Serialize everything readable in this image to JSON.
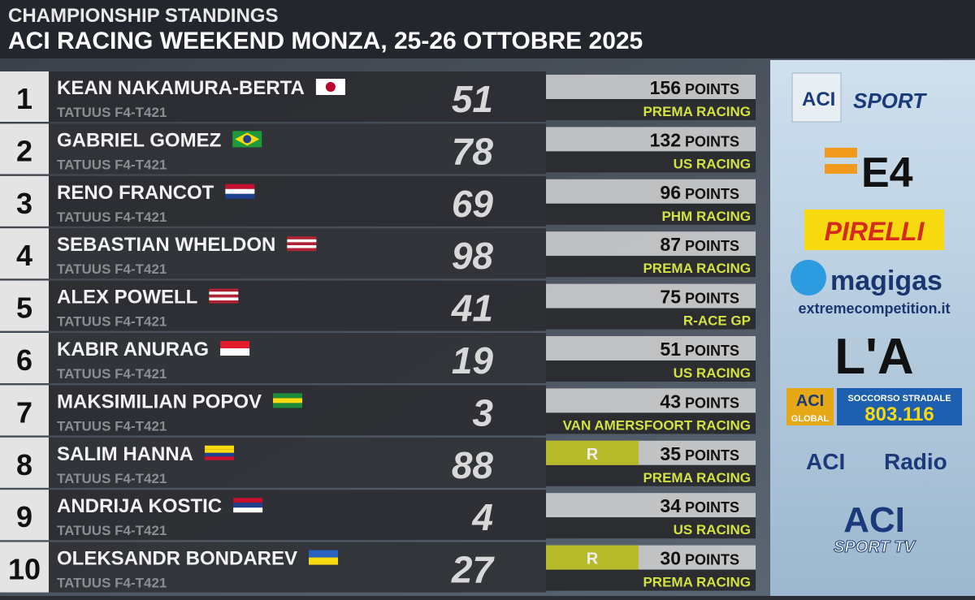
{
  "header": {
    "title": "CHAMPIONSHIP STANDINGS",
    "subtitle": "ACI RACING WEEKEND MONZA, 25-26 OTTOBRE 2025"
  },
  "standings": {
    "rows": [
      {
        "position": "1",
        "driver": "KEAN NAKAMURA-BERTA",
        "car": "TATUUS F4-T421",
        "number": "51",
        "points": "156",
        "points_unit": "POINTS",
        "team": "PREMA RACING"
      },
      {
        "position": "2",
        "driver": "GABRIEL GOMEZ",
        "car": "TATUUS F4-T421",
        "number": "78",
        "points": "132",
        "points_unit": "POINTS",
        "team": "US RACING"
      },
      {
        "position": "3",
        "driver": "RENO FRANCOT",
        "car": "TATUUS F4-T421",
        "number": "69",
        "points": "96",
        "points_unit": "POINTS",
        "team": "PHM RACING"
      },
      {
        "position": "4",
        "driver": "SEBASTIAN WHELDON",
        "car": "TATUUS F4-T421",
        "number": "98",
        "points": "87",
        "points_unit": "POINTS",
        "team": "PREMA RACING"
      },
      {
        "position": "5",
        "driver": "ALEX POWELL",
        "car": "TATUUS F4-T421",
        "number": "41",
        "points": "75",
        "points_unit": "POINTS",
        "team": "R-ACE GP"
      },
      {
        "position": "6",
        "driver": "KABIR ANURAG",
        "car": "TATUUS F4-T421",
        "number": "19",
        "points": "51",
        "points_unit": "POINTS",
        "team": "US RACING"
      },
      {
        "position": "7",
        "driver": "MAKSIMILIAN POPOV",
        "car": "TATUUS F4-T421",
        "number": "3",
        "points": "43",
        "points_unit": "POINTS",
        "team": "VAN AMERSFOORT RACING"
      },
      {
        "position": "8",
        "driver": "SALIM HANNA",
        "car": "TATUUS F4-T421",
        "number": "88",
        "points": "35",
        "points_unit": "POINTS",
        "team": "PREMA RACING",
        "badge": "R"
      },
      {
        "position": "9",
        "driver": "ANDRIJA KOSTIC",
        "car": "TATUUS F4-T421",
        "number": "4",
        "points": "34",
        "points_unit": "POINTS",
        "team": "US RACING"
      },
      {
        "position": "10",
        "driver": "OLEKSANDR BONDAREV",
        "car": "TATUUS F4-T421",
        "number": "27",
        "points": "30",
        "points_unit": "POINTS",
        "team": "PREMA RACING",
        "badge": "R"
      }
    ]
  },
  "sponsors": {
    "aci_sport": [
      "ACI",
      "SPORT"
    ],
    "e4": "E4",
    "pirelli": "PIRELLI",
    "magigas": "magigas",
    "magigas_url": "extremecompetition.it",
    "automobile": "L'A",
    "aci_global": [
      "ACI",
      "GLOBAL"
    ],
    "soccorso": [
      "SOCCORSO STRADALE",
      "803.116"
    ],
    "aci_radio": [
      "ACI",
      "Radio"
    ],
    "aci_sport_tv": [
      "ACI",
      "SPORT TV"
    ]
  }
}
